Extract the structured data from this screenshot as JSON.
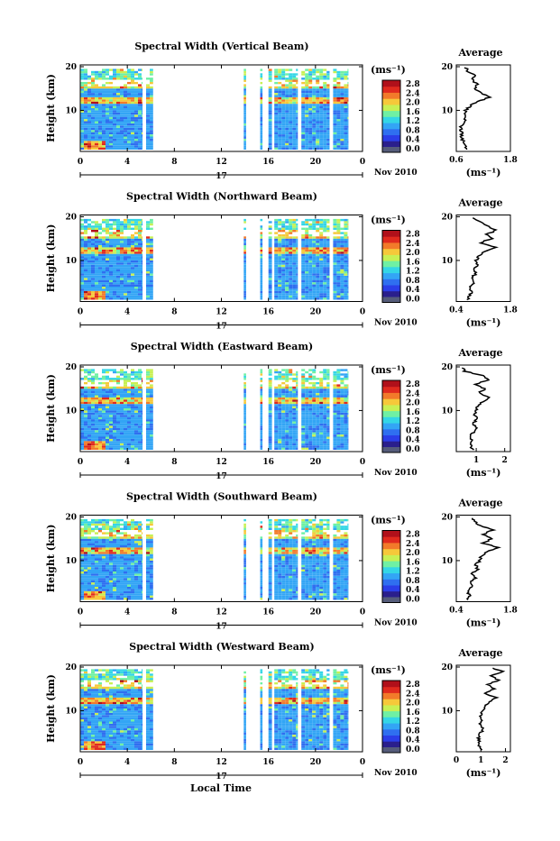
{
  "common": {
    "ylabel": "Height (km)",
    "x_ticks": [
      "0",
      "4",
      "8",
      "12",
      "16",
      "20",
      "0"
    ],
    "y_ticks": [
      "20",
      "10"
    ],
    "day_label": "17",
    "month_year": "Nov 2010",
    "colorbar_unit": "(ms⁻¹)",
    "colorbar_ticks": [
      "2.8",
      "2.4",
      "2.0",
      "1.6",
      "1.2",
      "0.8",
      "0.4",
      "0.0"
    ],
    "avg_title": "Average",
    "avg_xlabel": "(ms⁻¹)",
    "xlabel": "Local Time"
  },
  "colors": {
    "colormap": [
      "#2a1f8c",
      "#2b3ee8",
      "#2f6ff0",
      "#33a5f5",
      "#34d6e6",
      "#6ff0a4",
      "#c8f054",
      "#f6c83a",
      "#f27a2a",
      "#e02a1e",
      "#b0101a"
    ]
  },
  "chart_data": [
    {
      "type": "heatmap",
      "title": "Spectral Width (Vertical Beam)",
      "avg_ticks": [
        "0.6",
        "1.8"
      ],
      "avg_xlim": [
        0.6,
        1.8
      ],
      "data_columns_hours": [
        [
          0,
          5.3
        ],
        [
          5.6,
          6.2
        ],
        [
          13.9,
          14.1
        ],
        [
          15.3,
          15.5
        ],
        [
          16.0,
          16.3
        ],
        [
          16.5,
          18.5
        ],
        [
          18.8,
          21.2
        ],
        [
          21.5,
          22.8
        ]
      ],
      "profile": {
        "height_km": [
          1,
          2,
          3,
          4,
          5,
          6,
          7,
          8,
          9,
          10,
          11,
          12,
          13,
          14,
          15,
          16,
          17,
          18,
          19,
          20
        ],
        "value": [
          0.85,
          0.8,
          0.75,
          0.7,
          0.72,
          0.7,
          0.75,
          0.8,
          0.78,
          0.8,
          0.9,
          1.05,
          1.35,
          1.15,
          1.0,
          1.05,
          0.95,
          1.05,
          0.85,
          0.8
        ]
      }
    },
    {
      "type": "heatmap",
      "title": "Spectral Width (Northward Beam)",
      "avg_ticks": [
        "0.4",
        "1.8"
      ],
      "avg_xlim": [
        0.4,
        1.8
      ],
      "data_columns_hours": [
        [
          0,
          5.3
        ],
        [
          5.6,
          6.2
        ],
        [
          13.9,
          14.1
        ],
        [
          15.3,
          15.5
        ],
        [
          16.0,
          16.3
        ],
        [
          16.5,
          18.5
        ],
        [
          18.8,
          21.2
        ],
        [
          21.5,
          22.8
        ]
      ],
      "profile": {
        "height_km": [
          1,
          2,
          3,
          4,
          5,
          6,
          7,
          8,
          9,
          10,
          11,
          12,
          13,
          14,
          15,
          16,
          17,
          18,
          19,
          20
        ],
        "value": [
          0.7,
          0.75,
          0.8,
          0.75,
          0.85,
          0.8,
          0.9,
          0.85,
          0.95,
          0.9,
          1.0,
          1.1,
          1.4,
          1.0,
          1.3,
          1.2,
          1.45,
          1.15,
          1.0,
          0.75
        ]
      }
    },
    {
      "type": "heatmap",
      "title": "Spectral Width (Eastward Beam)",
      "avg_ticks": [
        "1",
        "2"
      ],
      "avg_xlim": [
        0.3,
        2.2
      ],
      "data_columns_hours": [
        [
          0,
          5.3
        ],
        [
          5.6,
          6.2
        ],
        [
          13.9,
          14.1
        ],
        [
          15.3,
          15.5
        ],
        [
          16.0,
          16.3
        ],
        [
          16.5,
          18.5
        ],
        [
          18.8,
          21.2
        ],
        [
          21.5,
          22.8
        ]
      ],
      "profile": {
        "height_km": [
          1,
          2,
          3,
          4,
          5,
          6,
          7,
          8,
          9,
          10,
          11,
          12,
          13,
          14,
          15,
          16,
          17,
          18,
          19,
          20
        ],
        "value": [
          0.9,
          0.8,
          0.85,
          0.8,
          0.9,
          1.0,
          0.9,
          1.0,
          0.95,
          1.0,
          1.05,
          1.2,
          1.5,
          1.1,
          1.3,
          1.0,
          1.4,
          1.2,
          0.6,
          0.5
        ]
      }
    },
    {
      "type": "heatmap",
      "title": "Spectral Width (Southward Beam)",
      "avg_ticks": [
        "0.4",
        "1.8"
      ],
      "avg_xlim": [
        0.4,
        1.8
      ],
      "data_columns_hours": [
        [
          0,
          5.3
        ],
        [
          5.6,
          6.2
        ],
        [
          13.9,
          14.1
        ],
        [
          15.3,
          15.5
        ],
        [
          16.0,
          16.3
        ],
        [
          16.5,
          18.5
        ],
        [
          18.8,
          21.2
        ],
        [
          21.5,
          22.8
        ]
      ],
      "profile": {
        "height_km": [
          1,
          2,
          3,
          4,
          5,
          6,
          7,
          8,
          9,
          10,
          11,
          12,
          13,
          14,
          15,
          16,
          17,
          18,
          19,
          20
        ],
        "value": [
          0.7,
          0.75,
          0.7,
          0.8,
          0.75,
          0.9,
          0.8,
          0.95,
          0.9,
          1.0,
          1.05,
          1.2,
          1.5,
          1.1,
          1.3,
          1.1,
          1.35,
          1.0,
          0.9,
          0.8
        ]
      }
    },
    {
      "type": "heatmap",
      "title": "Spectral Width (Westward Beam)",
      "avg_ticks": [
        "0",
        "1",
        "2"
      ],
      "avg_xlim": [
        0,
        2.2
      ],
      "data_columns_hours": [
        [
          0,
          5.3
        ],
        [
          5.6,
          6.2
        ],
        [
          13.9,
          14.1
        ],
        [
          15.3,
          15.5
        ],
        [
          16.0,
          16.3
        ],
        [
          16.5,
          18.5
        ],
        [
          18.8,
          21.2
        ],
        [
          21.5,
          22.8
        ]
      ],
      "profile": {
        "height_km": [
          1,
          2,
          3,
          4,
          5,
          6,
          7,
          8,
          9,
          10,
          11,
          12,
          13,
          14,
          15,
          16,
          17,
          18,
          19,
          20
        ],
        "value": [
          1.0,
          0.9,
          0.95,
          0.9,
          1.0,
          1.1,
          0.95,
          1.05,
          1.0,
          1.1,
          1.2,
          1.3,
          1.6,
          1.2,
          1.5,
          1.3,
          1.7,
          1.4,
          1.9,
          1.3
        ]
      }
    }
  ]
}
